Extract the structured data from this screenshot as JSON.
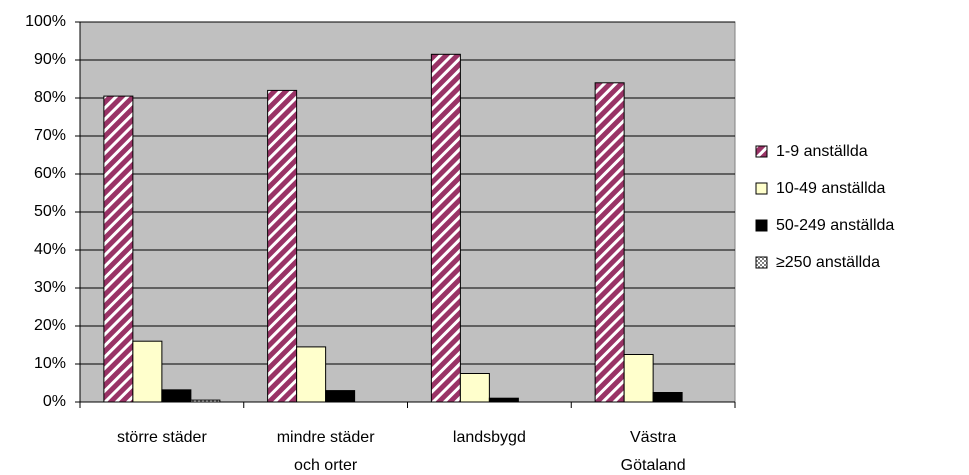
{
  "chart_data": {
    "type": "bar",
    "categories": [
      "större städer",
      "mindre städer\noch orter",
      "landsbygd",
      "Västra\nGötaland"
    ],
    "series": [
      {
        "name": "1-9 anställda",
        "color": "#993366",
        "pattern": "stripes",
        "values": [
          80.5,
          82,
          91.5,
          84
        ]
      },
      {
        "name": "10-49 anställda",
        "color": "#ffffcc",
        "values": [
          16,
          14.5,
          7.5,
          12.5
        ]
      },
      {
        "name": "50-249 anställda",
        "color": "#000000",
        "values": [
          3.2,
          3,
          1,
          2.5
        ]
      },
      {
        "name": "≥250 anställda",
        "color": "#808080",
        "pattern": "checker",
        "values": [
          0.5,
          0,
          0,
          0
        ]
      }
    ],
    "ylim": [
      0,
      100
    ],
    "yticks": [
      {
        "value": 0,
        "label": "0%"
      },
      {
        "value": 10,
        "label": "10%"
      },
      {
        "value": 20,
        "label": "20%"
      },
      {
        "value": 30,
        "label": "30%"
      },
      {
        "value": 40,
        "label": "40%"
      },
      {
        "value": 50,
        "label": "50%"
      },
      {
        "value": 60,
        "label": "60%"
      },
      {
        "value": 70,
        "label": "70%"
      },
      {
        "value": 80,
        "label": "80%"
      },
      {
        "value": 90,
        "label": "90%"
      },
      {
        "value": 100,
        "label": "100%"
      }
    ],
    "grid": true,
    "legend": "right",
    "background": "#c0c0c0"
  }
}
